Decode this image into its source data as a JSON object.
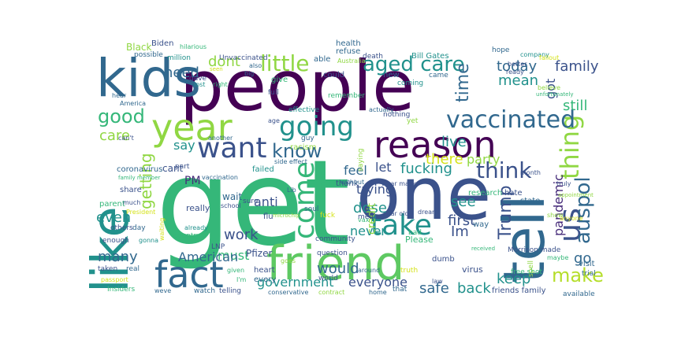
{
  "palette": {
    "deep_purple": "#440154",
    "indigo": "#3b528b",
    "blue": "#31688e",
    "teal": "#21918c",
    "green": "#35b779",
    "lime": "#90d743",
    "yellow": "#d4e21a",
    "navy": "#472c7a"
  },
  "words": [
    {
      "id": "get",
      "text": "get",
      "color": "#35b779"
    },
    {
      "id": "people",
      "text": "people",
      "color": "#440154"
    },
    {
      "id": "one",
      "text": "one",
      "color": "#3b528b"
    },
    {
      "id": "kids",
      "text": "kids",
      "color": "#31688e"
    },
    {
      "id": "friend",
      "text": "friend",
      "color": "#5ec962"
    },
    {
      "id": "tell",
      "text": "tell",
      "color": "#31688e"
    },
    {
      "id": "like",
      "text": "like",
      "color": "#21918c"
    },
    {
      "id": "year",
      "text": "year",
      "color": "#90d743"
    },
    {
      "id": "reason",
      "text": "reason",
      "color": "#440154"
    },
    {
      "id": "fact",
      "text": "fact",
      "color": "#31688e"
    },
    {
      "id": "going",
      "text": "going",
      "color": "#21918c"
    },
    {
      "id": "want",
      "text": "want",
      "color": "#3b528b"
    },
    {
      "id": "take",
      "text": "take",
      "color": "#21918c"
    },
    {
      "id": "come",
      "text": "come",
      "color": "#35b779"
    },
    {
      "id": "thing",
      "text": "thing",
      "color": "#90d743"
    },
    {
      "id": "us",
      "text": "us",
      "color": "#3b528b"
    },
    {
      "id": "vaccinated",
      "text": "vaccinated",
      "color": "#31688e"
    },
    {
      "id": "auspol",
      "text": "auspol",
      "color": "#31688e"
    },
    {
      "id": "know",
      "text": "know",
      "color": "#31688e"
    },
    {
      "id": "think",
      "text": "think",
      "color": "#3b528b"
    },
    {
      "id": "little",
      "text": "little",
      "color": "#90d743"
    },
    {
      "id": "aged-care",
      "text": "aged care",
      "color": "#21918c"
    },
    {
      "id": "good",
      "text": "good",
      "color": "#35b779"
    },
    {
      "id": "make",
      "text": "make",
      "color": "#b5de2b"
    },
    {
      "id": "getting",
      "text": "getting",
      "color": "#90d743"
    },
    {
      "id": "trump",
      "text": "Trump",
      "color": "#3b528b"
    },
    {
      "id": "time",
      "text": "time",
      "color": "#31688e"
    },
    {
      "id": "got",
      "text": "got",
      "color": "#3b528b"
    },
    {
      "id": "today",
      "text": "today",
      "color": "#31688e"
    },
    {
      "id": "family",
      "text": "family",
      "color": "#3b528b"
    },
    {
      "id": "mean",
      "text": "mean",
      "color": "#21918c"
    },
    {
      "id": "still",
      "text": "still",
      "color": "#35b779"
    },
    {
      "id": "dont",
      "text": "dont",
      "color": "#90d743"
    },
    {
      "id": "need",
      "text": "need",
      "color": "#31688e"
    },
    {
      "id": "care",
      "text": "care",
      "color": "#90d743"
    },
    {
      "id": "say",
      "text": "say",
      "color": "#21918c"
    },
    {
      "id": "live",
      "text": "live",
      "color": "#21918c"
    },
    {
      "id": "feel",
      "text": "feel",
      "color": "#31688e"
    },
    {
      "id": "let",
      "text": "let",
      "color": "#3b528b"
    },
    {
      "id": "fucking",
      "text": "fucking",
      "color": "#21918c"
    },
    {
      "id": "there",
      "text": "there",
      "color": "#d4e21a"
    },
    {
      "id": "party",
      "text": "party",
      "color": "#90d743"
    },
    {
      "id": "trying",
      "text": "trying",
      "color": "#3b528b"
    },
    {
      "id": "im",
      "text": "Im",
      "color": "#3b528b"
    },
    {
      "id": "first",
      "text": "first",
      "color": "#3b528b"
    },
    {
      "id": "see",
      "text": "see",
      "color": "#21918c"
    },
    {
      "id": "pandemic",
      "text": "pandemic",
      "color": "#472c7a"
    },
    {
      "id": "go",
      "text": "go",
      "color": "#31688e"
    },
    {
      "id": "keep",
      "text": "keep",
      "color": "#21918c"
    },
    {
      "id": "back",
      "text": "back",
      "color": "#21918c"
    },
    {
      "id": "safe",
      "text": "safe",
      "color": "#31688e"
    },
    {
      "id": "would",
      "text": "would",
      "color": "#31688e"
    },
    {
      "id": "dose",
      "text": "dose",
      "color": "#21918c"
    },
    {
      "id": "never",
      "text": "never",
      "color": "#21918c"
    },
    {
      "id": "anti",
      "text": "anti",
      "color": "#3b528b"
    },
    {
      "id": "work",
      "text": "work",
      "color": "#3b528b"
    },
    {
      "id": "many",
      "text": "many",
      "color": "#31688e"
    },
    {
      "id": "even",
      "text": "even",
      "color": "#21918c"
    },
    {
      "id": "must",
      "text": "must",
      "color": "#35b779"
    },
    {
      "id": "american",
      "text": "American",
      "color": "#31688e"
    },
    {
      "id": "government",
      "text": "government",
      "color": "#21918c"
    },
    {
      "id": "everyone",
      "text": "everyone",
      "color": "#3b528b"
    },
    {
      "id": "pm",
      "text": "PM",
      "color": "#472c7a"
    },
    {
      "id": "credit",
      "text": "credit",
      "color": "#90d743"
    },
    {
      "id": "black",
      "text": "Black",
      "color": "#90d743"
    },
    {
      "id": "biden",
      "text": "Biden",
      "color": "#3b528b"
    },
    {
      "id": "hilarious",
      "text": "hilarious",
      "color": "#35b779"
    },
    {
      "id": "health",
      "text": "health",
      "color": "#31688e"
    },
    {
      "id": "refuse",
      "text": "refuse",
      "color": "#31688e"
    },
    {
      "id": "unvaccinated",
      "text": "Unvaccinated",
      "color": "#3b528b"
    },
    {
      "id": "million",
      "text": "million",
      "color": "#21918c"
    },
    {
      "id": "possible",
      "text": "possible",
      "color": "#31688e"
    },
    {
      "id": "able",
      "text": "able",
      "color": "#31688e"
    },
    {
      "id": "australia",
      "text": "Australia",
      "color": "#90d743"
    },
    {
      "id": "death",
      "text": "death",
      "color": "#3b528b"
    },
    {
      "id": "bill-gates",
      "text": "Bill Gates",
      "color": "#21918c"
    },
    {
      "id": "hope",
      "text": "hope",
      "color": "#31688e"
    },
    {
      "id": "company",
      "text": "company",
      "color": "#21918c"
    },
    {
      "id": "fallout",
      "text": "fallout",
      "color": "#d4e21a"
    },
    {
      "id": "better",
      "text": "better",
      "color": "#3b528b"
    },
    {
      "id": "ready",
      "text": "ready",
      "color": "#3b528b"
    },
    {
      "id": "believe",
      "text": "believe",
      "color": "#90d743"
    },
    {
      "id": "unfortunately",
      "text": "unfortunately",
      "color": "#35b779"
    },
    {
      "id": "could",
      "text": "could",
      "color": "#3b528b"
    },
    {
      "id": "new",
      "text": "new",
      "color": "#31688e"
    },
    {
      "id": "came",
      "text": "came",
      "color": "#31688e"
    },
    {
      "id": "coming",
      "text": "coming",
      "color": "#21918c"
    },
    {
      "id": "remember",
      "text": "remember",
      "color": "#35b779"
    },
    {
      "id": "nothing",
      "text": "nothing",
      "color": "#3b528b"
    },
    {
      "id": "actually",
      "text": "actually",
      "color": "#31688e"
    },
    {
      "id": "effective",
      "text": "effective",
      "color": "#21918c"
    },
    {
      "id": "yet",
      "text": "yet",
      "color": "#90d743"
    },
    {
      "id": "give",
      "text": "give",
      "color": "#35b779"
    },
    {
      "id": "full",
      "text": "full",
      "color": "#3b528b"
    },
    {
      "id": "big",
      "text": "big",
      "color": "#31688e"
    },
    {
      "id": "gave",
      "text": "gave",
      "color": "#3b528b"
    },
    {
      "id": "right",
      "text": "right",
      "color": "#35b779"
    },
    {
      "id": "lost",
      "text": "lost",
      "color": "#21918c"
    },
    {
      "id": "america",
      "text": "America",
      "color": "#31688e"
    },
    {
      "id": "age",
      "text": "age",
      "color": "#3b528b"
    },
    {
      "id": "guy",
      "text": "guy",
      "color": "#31688e"
    },
    {
      "id": "racism",
      "text": "racism",
      "color": "#90d743"
    },
    {
      "id": "cant",
      "text": "cant",
      "color": "#3b528b"
    },
    {
      "id": "cant2",
      "text": "can't",
      "color": "#3b528b"
    },
    {
      "id": "another",
      "text": "another",
      "color": "#31688e"
    },
    {
      "id": "part",
      "text": "part",
      "color": "#3b528b"
    },
    {
      "id": "vaccination",
      "text": "vaccination",
      "color": "#31688e"
    },
    {
      "id": "failed",
      "text": "failed",
      "color": "#21918c"
    },
    {
      "id": "side-effect",
      "text": "side effect",
      "color": "#31688e"
    },
    {
      "id": "thank",
      "text": "thank",
      "color": "#3b528b"
    },
    {
      "id": "without",
      "text": "without",
      "color": "#31688e"
    },
    {
      "id": "wear-mask",
      "text": "wear mask",
      "color": "#3b528b"
    },
    {
      "id": "lib",
      "text": "Lib",
      "color": "#31688e"
    },
    {
      "id": "saying",
      "text": "saying",
      "color": "#90d743"
    },
    {
      "id": "month",
      "text": "month",
      "color": "#3b528b"
    },
    {
      "id": "truly",
      "text": "truly",
      "color": "#3b528b"
    },
    {
      "id": "appointment",
      "text": "appointment",
      "color": "#90d743"
    },
    {
      "id": "coronavirus",
      "text": "coronavirus",
      "color": "#31688e"
    },
    {
      "id": "family-member",
      "text": "family member",
      "color": "#35b779"
    },
    {
      "id": "share",
      "text": "share",
      "color": "#3b528b"
    },
    {
      "id": "wait",
      "text": "wait",
      "color": "#31688e"
    },
    {
      "id": "sure",
      "text": "sure",
      "color": "#3b528b"
    },
    {
      "id": "flu",
      "text": "flu",
      "color": "#3b528b"
    },
    {
      "id": "microchip",
      "text": "microchip",
      "color": "#90d743"
    },
    {
      "id": "premier",
      "text": "Premier",
      "color": "#35b779"
    },
    {
      "id": "medical",
      "text": "medical",
      "color": "#3b528b"
    },
    {
      "id": "research",
      "text": "research",
      "color": "#35b779"
    },
    {
      "id": "hate",
      "text": "hate",
      "color": "#3b528b"
    },
    {
      "id": "state",
      "text": "state",
      "color": "#31688e"
    },
    {
      "id": "parent",
      "text": "parent",
      "color": "#35b779"
    },
    {
      "id": "president",
      "text": "President",
      "color": "#d4e21a"
    },
    {
      "id": "much",
      "text": "much",
      "color": "#3b528b"
    },
    {
      "id": "really",
      "text": "really",
      "color": "#3b528b"
    },
    {
      "id": "school",
      "text": "school",
      "color": "#3b528b"
    },
    {
      "id": "soul",
      "text": "soul",
      "color": "#31688e"
    },
    {
      "id": "vax",
      "text": "vax",
      "color": "#35b779"
    },
    {
      "id": "year-old",
      "text": "year old",
      "color": "#3b528b"
    },
    {
      "id": "dream",
      "text": "dream",
      "color": "#3b528b"
    },
    {
      "id": "way",
      "text": "way",
      "color": "#31688e"
    },
    {
      "id": "show",
      "text": "show",
      "color": "#90d743"
    },
    {
      "id": "country",
      "text": "country",
      "color": "#35b779"
    },
    {
      "id": "already",
      "text": "already",
      "color": "#21918c"
    },
    {
      "id": "others",
      "text": "others",
      "color": "#3b528b"
    },
    {
      "id": "day",
      "text": "day",
      "color": "#31688e"
    },
    {
      "id": "bad",
      "text": "bad",
      "color": "#35b779"
    },
    {
      "id": "please",
      "text": "Please",
      "color": "#35b779"
    },
    {
      "id": "community",
      "text": "community",
      "color": "#3b528b"
    },
    {
      "id": "fuck",
      "text": "fuck",
      "color": "#d4e21a"
    },
    {
      "id": "anyone",
      "text": "anyone",
      "color": "#d4e21a"
    },
    {
      "id": "enough",
      "text": "enough",
      "color": "#3b528b"
    },
    {
      "id": "gonna",
      "text": "gonna",
      "color": "#21918c"
    },
    {
      "id": "waiting",
      "text": "waiting",
      "color": "#d4e21a"
    },
    {
      "id": "lnp",
      "text": "LNP",
      "color": "#3b528b"
    },
    {
      "id": "pfizer",
      "text": "Pfizer",
      "color": "#3b528b"
    },
    {
      "id": "question",
      "text": "question",
      "color": "#3b528b"
    },
    {
      "id": "morrison",
      "text": "Morrison made",
      "color": "#3b528b"
    },
    {
      "id": "dumb",
      "text": "dumb",
      "color": "#3b528b"
    },
    {
      "id": "maybe",
      "text": "maybe",
      "color": "#35b779"
    },
    {
      "id": "visit",
      "text": "visit",
      "color": "#31688e"
    },
    {
      "id": "taken",
      "text": "taken",
      "color": "#3b528b"
    },
    {
      "id": "real",
      "text": "real",
      "color": "#31688e"
    },
    {
      "id": "heart",
      "text": "heart",
      "color": "#3b528b"
    },
    {
      "id": "every",
      "text": "every",
      "color": "#31688e"
    },
    {
      "id": "goes",
      "text": "goes",
      "color": "#90d743"
    },
    {
      "id": "around",
      "text": "around",
      "color": "#31688e"
    },
    {
      "id": "truth",
      "text": "truth",
      "color": "#d4e21a"
    },
    {
      "id": "virus",
      "text": "virus",
      "color": "#3b528b"
    },
    {
      "id": "free-shot",
      "text": "free shot",
      "color": "#35b779"
    },
    {
      "id": "trial",
      "text": "trial",
      "color": "#31688e"
    },
    {
      "id": "passport",
      "text": "passport",
      "color": "#d4e21a"
    },
    {
      "id": "insiders",
      "text": "Insiders",
      "color": "#35b779"
    },
    {
      "id": "weve",
      "text": "weve",
      "color": "#31688e"
    },
    {
      "id": "watch",
      "text": "watch",
      "color": "#31688e"
    },
    {
      "id": "telling",
      "text": "telling",
      "color": "#3b528b"
    },
    {
      "id": "conservative",
      "text": "conservative",
      "color": "#31688e"
    },
    {
      "id": "contract",
      "text": "contract",
      "color": "#90d743"
    },
    {
      "id": "world",
      "text": "world",
      "color": "#3b528b"
    },
    {
      "id": "home",
      "text": "home",
      "color": "#31688e"
    },
    {
      "id": "that",
      "text": "that",
      "color": "#31688e"
    },
    {
      "id": "law",
      "text": "law",
      "color": "#3b528b"
    },
    {
      "id": "friends-family",
      "text": "friends family",
      "color": "#3b528b"
    },
    {
      "id": "available",
      "text": "available",
      "color": "#31688e"
    },
    {
      "id": "received",
      "text": "received",
      "color": "#35b779"
    },
    {
      "id": "spell",
      "text": "spell",
      "color": "#90d743"
    },
    {
      "id": "also",
      "text": "also",
      "color": "#31688e"
    },
    {
      "id": "seen",
      "text": "seen",
      "color": "#d4e21a"
    },
    {
      "id": "hear",
      "text": "hear",
      "color": "#31688e"
    },
    {
      "id": "given",
      "text": "given",
      "color": "#35b779"
    },
    {
      "id": "im2",
      "text": "I'm",
      "color": "#35b779"
    }
  ]
}
